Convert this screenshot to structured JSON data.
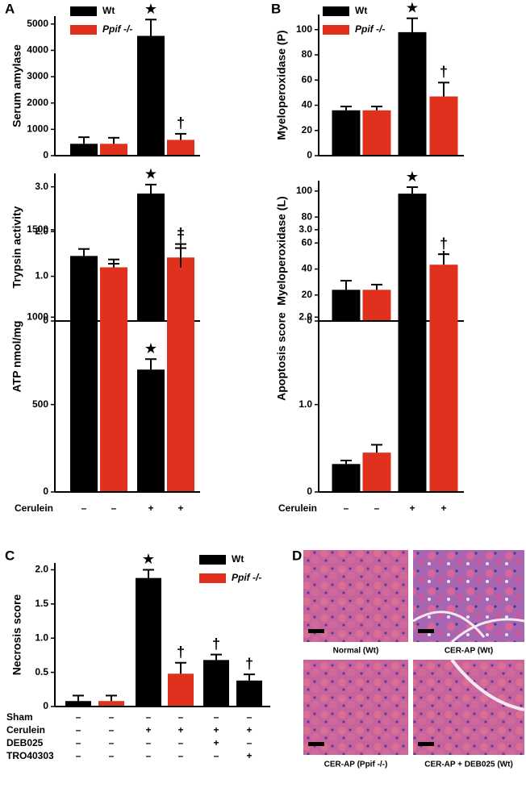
{
  "figure": {
    "panel_labels": [
      "A",
      "B",
      "C",
      "D"
    ],
    "histology_captions": [
      "Normal (Wt)",
      "CER-AP (Wt)",
      "CER-AP (Ppif -/-)",
      "CER-AP + DEB025 (Wt)"
    ]
  },
  "chart_data": [
    {
      "type": "bar",
      "ylabel": "Serum amylase",
      "ylim": [
        0,
        5300
      ],
      "yticks": [
        0,
        1000,
        2000,
        3000,
        4000,
        5000
      ],
      "values": [
        450,
        450,
        4550,
        600
      ],
      "errors": [
        250,
        230,
        620,
        230
      ],
      "colors": [
        "#000000",
        "#e0301e",
        "#000000",
        "#e0301e"
      ],
      "annotations": [
        null,
        null,
        "★",
        "†"
      ],
      "legend": [
        {
          "name": "Wt",
          "color": "#000000"
        },
        {
          "name": "Ppif -/-",
          "color": "#e0301e"
        }
      ]
    },
    {
      "type": "bar",
      "ylabel": "Trypsin activity",
      "ylim": [
        0,
        3.3
      ],
      "yticks": [
        0,
        {
          "value": 1,
          "label": "1.0"
        },
        {
          "value": 2,
          "label": "2.0"
        },
        {
          "value": 3,
          "label": "3.0"
        }
      ],
      "values": [
        1.0,
        1.13,
        2.85,
        1.42
      ],
      "errors": [
        0.1,
        0.15,
        0.2,
        0.3
      ],
      "colors": [
        "#000000",
        "#e0301e",
        "#000000",
        "#e0301e"
      ],
      "annotations": [
        null,
        null,
        "★",
        "†"
      ]
    },
    {
      "type": "bar",
      "ylabel": "ATP nmol/mg",
      "ylim": [
        0,
        1550
      ],
      "yticks": [
        0,
        500,
        1000,
        1500
      ],
      "values": [
        1350,
        1285,
        700,
        1285
      ],
      "errors": [
        40,
        45,
        60,
        110
      ],
      "colors": [
        "#000000",
        "#e0301e",
        "#000000",
        "#e0301e"
      ],
      "annotations": [
        null,
        null,
        "★",
        "†"
      ],
      "treatments": [
        {
          "name": "Cerulein",
          "values": [
            "–",
            "–",
            "+",
            "+"
          ]
        }
      ]
    },
    {
      "type": "bar",
      "ylabel": "Myeloperoxidase (P)",
      "ylim": [
        0,
        112
      ],
      "yticks": [
        0,
        20,
        40,
        60,
        80,
        100
      ],
      "values": [
        36,
        36,
        98,
        47
      ],
      "errors": [
        3,
        3,
        11,
        11
      ],
      "colors": [
        "#000000",
        "#e0301e",
        "#000000",
        "#e0301e"
      ],
      "annotations": [
        null,
        null,
        "★",
        "†"
      ],
      "legend": [
        {
          "name": "Wt",
          "color": "#000000"
        },
        {
          "name": "Ppif -/-",
          "color": "#e0301e"
        }
      ]
    },
    {
      "type": "bar",
      "ylabel": "Myeloperoxidase (L)",
      "ylim": [
        0,
        108
      ],
      "yticks": [
        0,
        20,
        40,
        60,
        80,
        100
      ],
      "values": [
        24,
        24,
        98,
        34
      ],
      "errors": [
        7,
        4,
        5,
        7
      ],
      "colors": [
        "#000000",
        "#e0301e",
        "#000000",
        "#e0301e"
      ],
      "annotations": [
        null,
        null,
        "★",
        "†"
      ]
    },
    {
      "type": "bar",
      "ylabel": "Apoptosis score",
      "ylim": [
        0,
        3.1
      ],
      "yticks": [
        0,
        {
          "value": 1,
          "label": "1.0"
        },
        {
          "value": 2,
          "label": "2.0"
        },
        {
          "value": 3,
          "label": "3.0"
        }
      ],
      "values": [
        0.32,
        0.45,
        2.32,
        2.6
      ],
      "errors": [
        0.04,
        0.09,
        0.27,
        0.12
      ],
      "colors": [
        "#000000",
        "#e0301e",
        "#000000",
        "#e0301e"
      ],
      "annotations": [
        null,
        null,
        "★",
        "†"
      ],
      "treatments": [
        {
          "name": "Cerulein",
          "values": [
            "–",
            "–",
            "+",
            "+"
          ]
        }
      ]
    },
    {
      "type": "bar",
      "ylabel": "Necrosis score",
      "ylim": [
        0,
        2.1
      ],
      "yticks": [
        0,
        0.5,
        {
          "value": 1,
          "label": "1.0"
        },
        1.5,
        {
          "value": 2,
          "label": "2.0"
        }
      ],
      "values": [
        0.08,
        0.08,
        1.88,
        0.48,
        0.68,
        0.38
      ],
      "errors": [
        0.08,
        0.08,
        0.12,
        0.16,
        0.08,
        0.09
      ],
      "colors": [
        "#000000",
        "#e0301e",
        "#000000",
        "#e0301e",
        "#000000",
        "#000000"
      ],
      "annotations": [
        null,
        null,
        "★",
        "†",
        "†",
        "†"
      ],
      "legend": [
        {
          "name": "Wt",
          "color": "#000000"
        },
        {
          "name": "Ppif -/-",
          "color": "#e0301e"
        }
      ],
      "treatments": [
        {
          "name": "Sham",
          "values": [
            "–",
            "–",
            "–",
            "–",
            "–",
            "–"
          ]
        },
        {
          "name": "Cerulein",
          "values": [
            "–",
            "–",
            "+",
            "+",
            "+",
            "+"
          ]
        },
        {
          "name": "DEB025",
          "values": [
            "–",
            "–",
            "–",
            "–",
            "+",
            "–"
          ]
        },
        {
          "name": "TRO40303",
          "values": [
            "–",
            "–",
            "–",
            "–",
            "–",
            "+"
          ]
        }
      ]
    }
  ]
}
